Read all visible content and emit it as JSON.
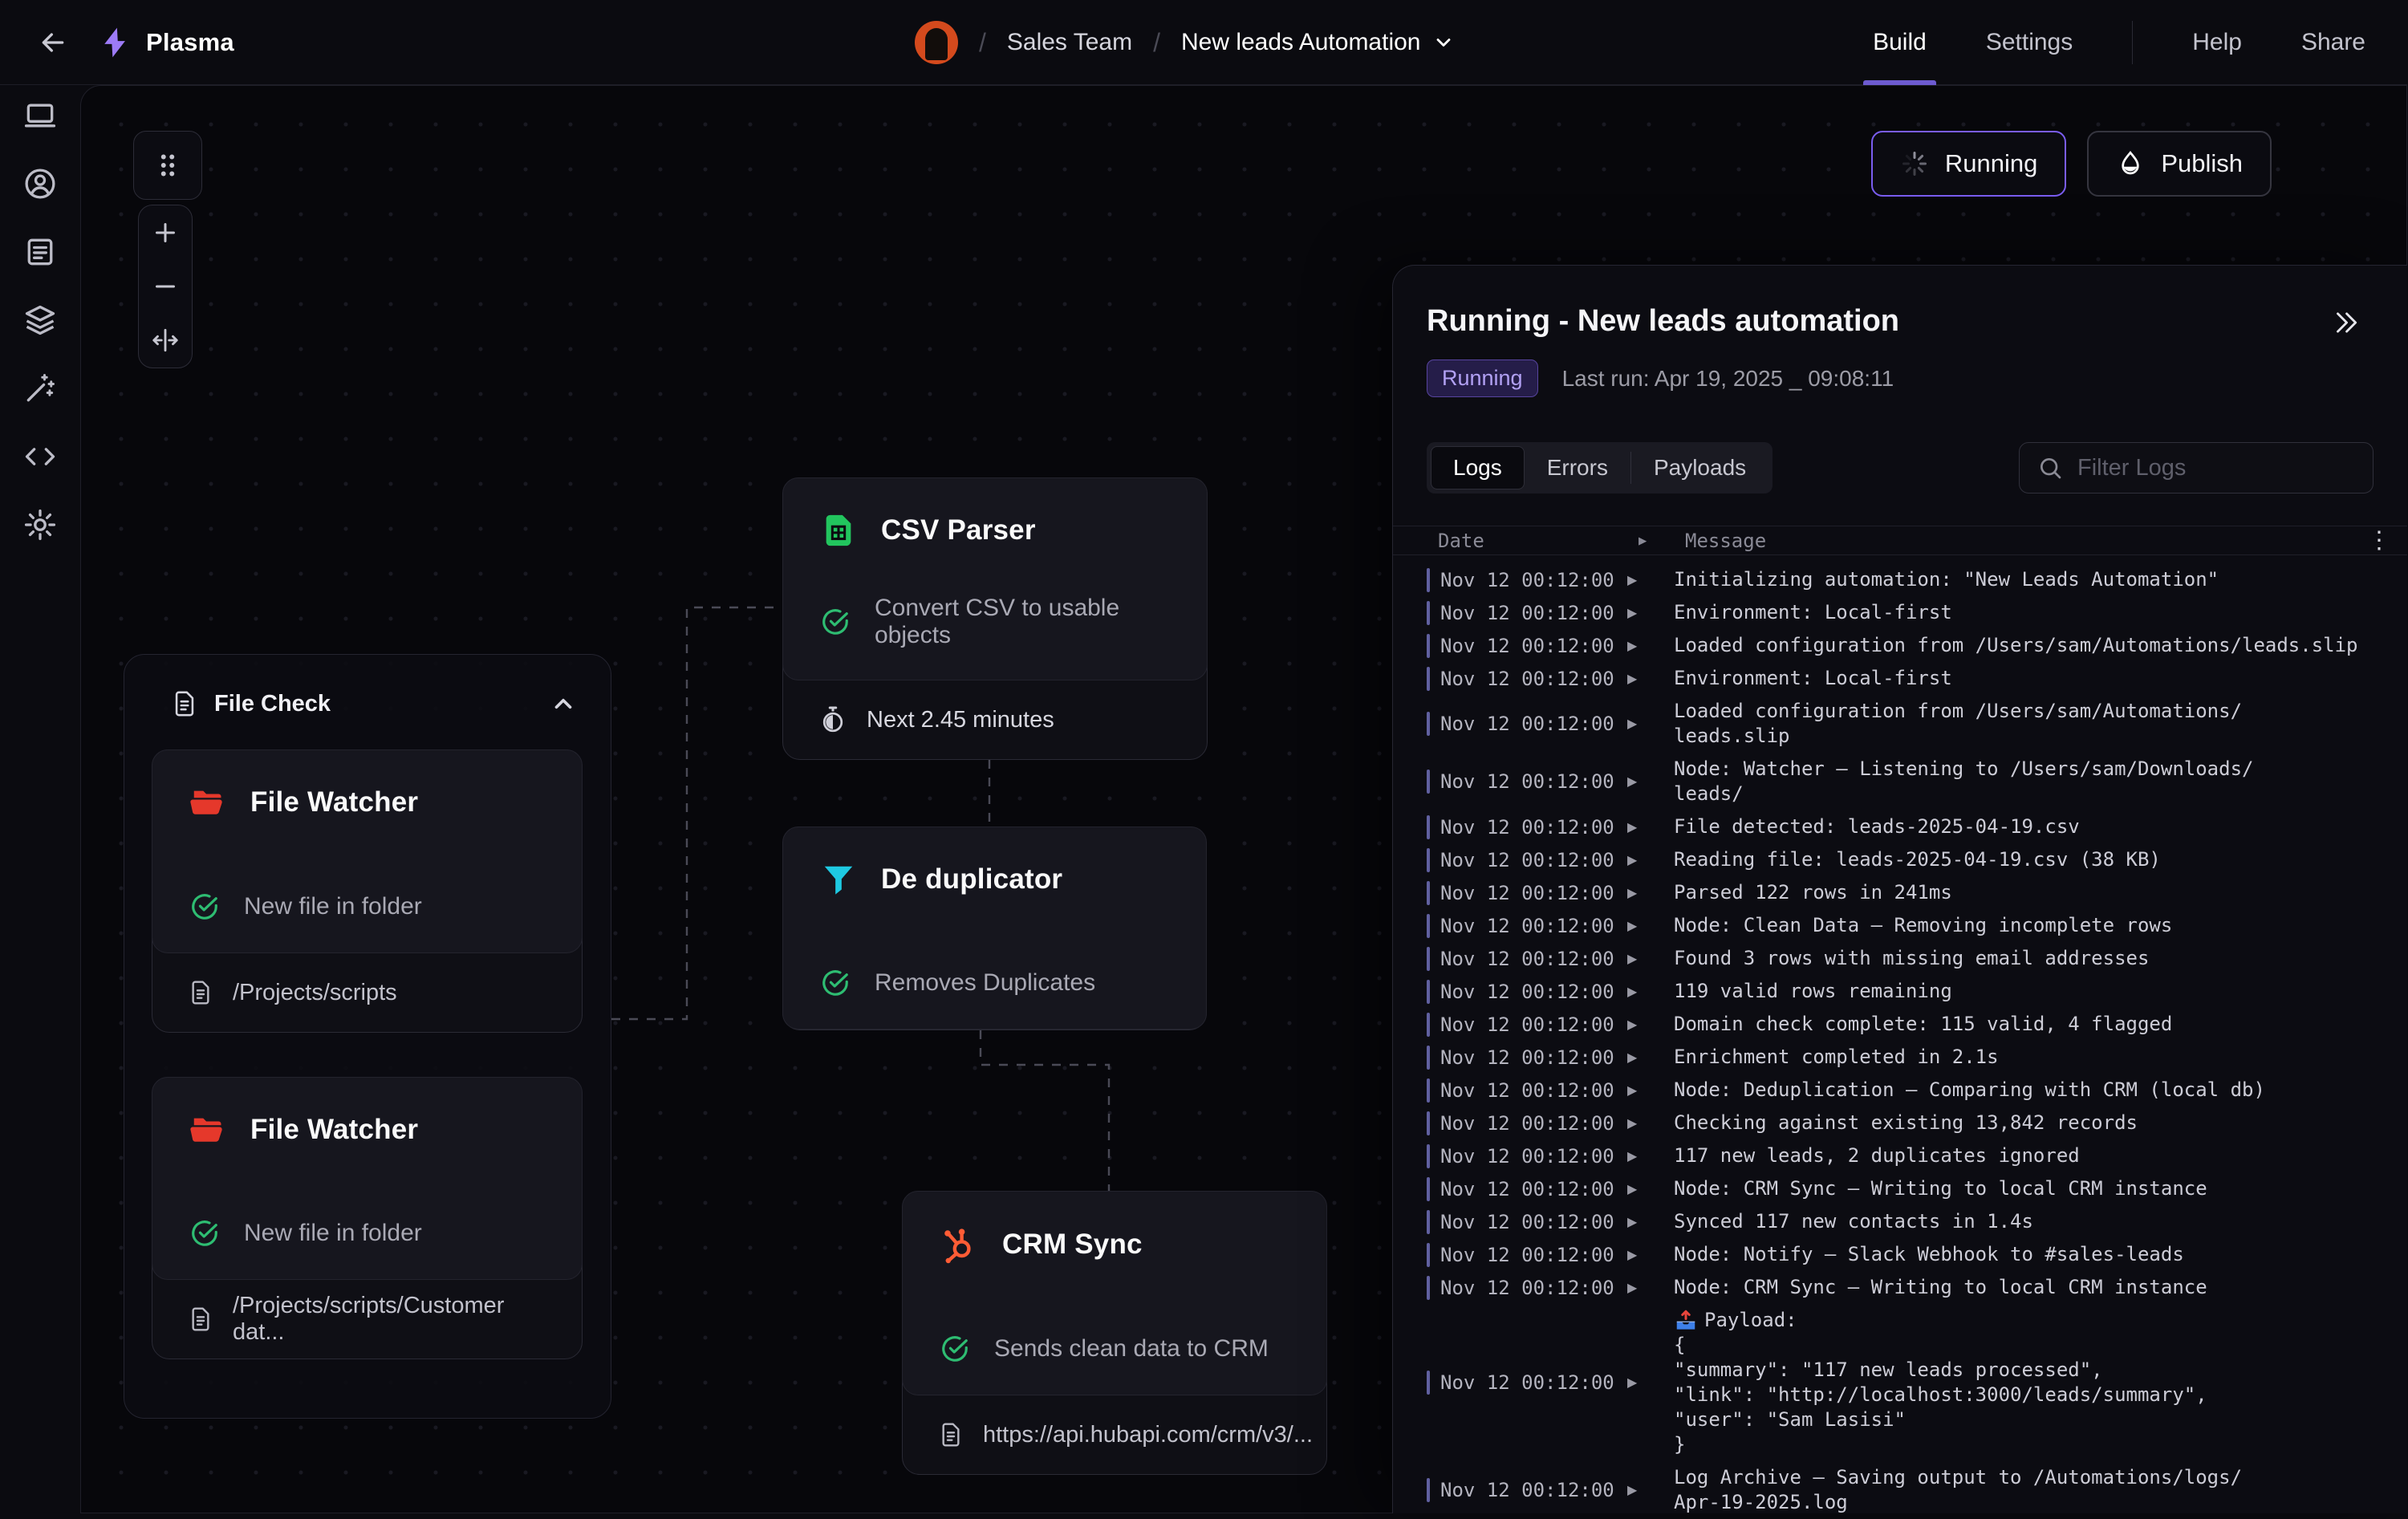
{
  "app": {
    "name": "Plasma"
  },
  "nav": {
    "breadcrumb": {
      "team": "Sales Team",
      "automation": "New leads Automation"
    },
    "tabs": [
      {
        "label": "Build",
        "active": true
      },
      {
        "label": "Settings",
        "active": false
      }
    ],
    "actions": [
      {
        "label": "Help"
      },
      {
        "label": "Share"
      }
    ]
  },
  "sidebar": {
    "items": [
      {
        "icon": "desktop-icon"
      },
      {
        "icon": "account-icon"
      },
      {
        "icon": "notes-icon"
      },
      {
        "icon": "layers-icon"
      },
      {
        "icon": "magic-wand-icon"
      },
      {
        "icon": "code-icon"
      },
      {
        "icon": "settings-gear-icon"
      }
    ]
  },
  "canvas": {
    "run_status_button": "Running",
    "publish_button": "Publish",
    "group": {
      "title": "File Check"
    },
    "nodes": {
      "file_watcher_1": {
        "title": "File Watcher",
        "trigger": "New file in folder",
        "path": "/Projects/scripts"
      },
      "file_watcher_2": {
        "title": "File Watcher",
        "trigger": "New file in folder",
        "path": "/Projects/scripts/Customer dat..."
      },
      "csv_parser": {
        "title": "CSV Parser",
        "trigger": "Convert CSV to usable objects",
        "schedule": "Next 2.45 minutes"
      },
      "de_duplicator": {
        "title": "De duplicator",
        "trigger": "Removes Duplicates"
      },
      "crm_sync": {
        "title": "CRM Sync",
        "trigger": "Sends clean data to CRM",
        "path": "https://api.hubapi.com/crm/v3/..."
      }
    }
  },
  "panel": {
    "title": "Running - New leads automation",
    "status_badge": "Running",
    "last_run": "Last run: Apr 19, 2025 _ 09:08:11",
    "tabs": [
      {
        "label": "Logs",
        "active": true
      },
      {
        "label": "Errors",
        "active": false
      },
      {
        "label": "Payloads",
        "active": false
      }
    ],
    "filter_placeholder": "Filter Logs",
    "table": {
      "date_header": "Date",
      "message_header": "Message"
    },
    "logs": [
      {
        "date": "Nov 12 00:12:00",
        "msg": "Initializing automation: \"New Leads Automation\""
      },
      {
        "date": "Nov 12 00:12:00",
        "msg": "Environment: Local-first"
      },
      {
        "date": "Nov 12 00:12:00",
        "msg": "Loaded configuration from /Users/sam/Automations/leads.slip"
      },
      {
        "date": "Nov 12 00:12:00",
        "msg": "Environment: Local-first"
      },
      {
        "date": "Nov 12 00:12:00",
        "msg": "Loaded configuration from /Users/sam/Automations/\nleads.slip"
      },
      {
        "date": "Nov 12 00:12:00",
        "msg": "Node: Watcher – Listening to /Users/sam/Downloads/\nleads/"
      },
      {
        "date": "Nov 12 00:12:00",
        "msg": "File detected: leads-2025-04-19.csv"
      },
      {
        "date": "Nov 12 00:12:00",
        "msg": "Reading file: leads-2025-04-19.csv (38 KB)"
      },
      {
        "date": "Nov 12 00:12:00",
        "msg": "Parsed 122 rows in 241ms"
      },
      {
        "date": "Nov 12 00:12:00",
        "msg": "Node: Clean Data – Removing incomplete rows"
      },
      {
        "date": "Nov 12 00:12:00",
        "msg": "Found 3 rows with missing email addresses"
      },
      {
        "date": "Nov 12 00:12:00",
        "msg": "119 valid rows remaining"
      },
      {
        "date": "Nov 12 00:12:00",
        "msg": "Domain check complete: 115 valid, 4 flagged"
      },
      {
        "date": "Nov 12 00:12:00",
        "msg": "Enrichment completed in 2.1s"
      },
      {
        "date": "Nov 12 00:12:00",
        "msg": "Node: Deduplication – Comparing with CRM (local db)"
      },
      {
        "date": "Nov 12 00:12:00",
        "msg": "Checking against existing 13,842 records"
      },
      {
        "date": "Nov 12 00:12:00",
        "msg": "117 new leads, 2 duplicates ignored"
      },
      {
        "date": "Nov 12 00:12:00",
        "msg": "Node: CRM Sync – Writing to local CRM instance"
      },
      {
        "date": "Nov 12 00:12:00",
        "msg": "Synced 117 new contacts in 1.4s"
      },
      {
        "date": "Nov 12 00:12:00",
        "msg": "Node: Notify – Slack Webhook to #sales-leads"
      },
      {
        "date": "Nov 12 00:12:00",
        "msg": "Node: CRM Sync – Writing to local CRM instance"
      },
      {
        "date": "Nov 12 00:12:00",
        "icon": "outbox-tray-emoji",
        "msg": "Payload:\n{\n  \"summary\": \"117 new leads processed\",\n  \"link\": \"http://localhost:3000/leads/summary\",\n  \"user\": \"Sam Lasisi\"\n}"
      },
      {
        "date": "Nov 12 00:12:00",
        "msg": " Log Archive – Saving output to /Automations/logs/\nApr-19-2025.log"
      }
    ]
  },
  "colors": {
    "accent_purple": "#7a5df0",
    "badge_text_purple": "#b2a1f4",
    "status_green": "#2ebd72",
    "folder_red": "#e5382b",
    "sheet_green": "#22c55e",
    "funnel_cyan": "#1ec9e2",
    "hubspot_orange": "#ff5c35",
    "log_bar_purple": "#6060a0"
  }
}
